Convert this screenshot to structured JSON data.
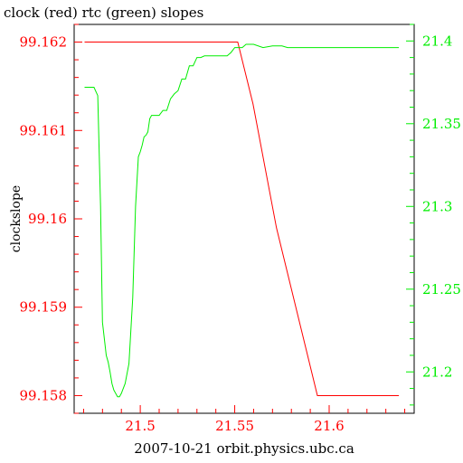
{
  "chart_data": {
    "type": "line",
    "title": "clock (red) rtc (green) slopes",
    "xlabel": "2007-10-21 orbit.physics.ubc.ca",
    "ylabel_left": "clockslope",
    "ylabel_right": "",
    "xlim": [
      21.465,
      21.645
    ],
    "x_ticks": [
      21.5,
      21.55,
      21.6
    ],
    "y_left_lim": [
      99.1578,
      99.1622
    ],
    "y_left_ticks": [
      99.158,
      99.159,
      99.16,
      99.161,
      99.162
    ],
    "y_right_lim": [
      21.175,
      21.41
    ],
    "y_right_ticks": [
      21.2,
      21.25,
      21.3,
      21.35,
      21.4
    ],
    "grid": false,
    "colors": {
      "clock": "#ff0000",
      "rtc": "#00ee00",
      "axis": "#000000",
      "left_ticks": "#ff0000",
      "right_ticks": "#00ee00",
      "x_ticks": "#ff0000"
    },
    "series": [
      {
        "name": "clock",
        "axis": "left",
        "x": [
          21.4705,
          21.5516,
          21.5597,
          21.5721,
          21.5938,
          21.6369
        ],
        "y": [
          99.162,
          99.162,
          99.1613,
          99.1599,
          99.158,
          99.158
        ]
      },
      {
        "name": "rtc",
        "axis": "right",
        "x": [
          21.4705,
          21.4755,
          21.4775,
          21.479,
          21.48,
          21.481,
          21.482,
          21.483,
          21.484,
          21.485,
          21.486,
          21.488,
          21.489,
          21.49,
          21.492,
          21.494,
          21.496,
          21.4975,
          21.499,
          21.5,
          21.501,
          21.502,
          21.503,
          21.504,
          21.505,
          21.506,
          21.508,
          21.51,
          21.512,
          21.514,
          21.516,
          21.518,
          21.52,
          21.522,
          21.524,
          21.526,
          21.528,
          21.53,
          21.532,
          21.534,
          21.536,
          21.538,
          21.54,
          21.542,
          21.544,
          21.546,
          21.548,
          21.55,
          21.552,
          21.554,
          21.556,
          21.558,
          21.56,
          21.565,
          21.57,
          21.575,
          21.578,
          21.58,
          21.585,
          21.59,
          21.595,
          21.6,
          21.605,
          21.61,
          21.615,
          21.62,
          21.625,
          21.63,
          21.6369
        ],
        "y": [
          21.372,
          21.372,
          21.367,
          21.3,
          21.23,
          21.22,
          21.21,
          21.206,
          21.2,
          21.193,
          21.189,
          21.185,
          21.185,
          21.187,
          21.193,
          21.205,
          21.245,
          21.3,
          21.33,
          21.333,
          21.337,
          21.342,
          21.343,
          21.345,
          21.353,
          21.355,
          21.355,
          21.355,
          21.358,
          21.358,
          21.365,
          21.368,
          21.37,
          21.377,
          21.377,
          21.385,
          21.385,
          21.39,
          21.39,
          21.391,
          21.391,
          21.391,
          21.391,
          21.391,
          21.391,
          21.391,
          21.393,
          21.396,
          21.396,
          21.396,
          21.398,
          21.398,
          21.398,
          21.396,
          21.397,
          21.397,
          21.396,
          21.396,
          21.396,
          21.396,
          21.396,
          21.396,
          21.396,
          21.396,
          21.396,
          21.396,
          21.396,
          21.396,
          21.396
        ]
      }
    ]
  }
}
